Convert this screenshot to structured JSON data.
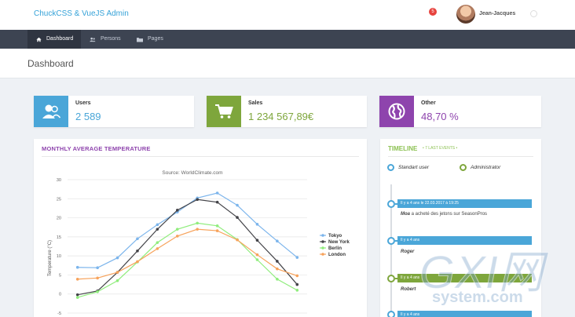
{
  "header": {
    "brand": "ChuckCSS & VueJS Admin",
    "notification_count": "5",
    "username": "Jean-Jacques"
  },
  "nav": {
    "items": [
      {
        "label": "Dashboard",
        "icon": "home-icon",
        "active": true
      },
      {
        "label": "Persons",
        "icon": "users-icon",
        "active": false
      },
      {
        "label": "Pages",
        "icon": "folder-icon",
        "active": false
      }
    ]
  },
  "page": {
    "title": "Dashboard"
  },
  "stats": [
    {
      "label": "Users",
      "value": "2 589",
      "icon": "users-icon",
      "color": "#4aa6d8"
    },
    {
      "label": "Sales",
      "value": "1 234 567,89€",
      "icon": "cart-icon",
      "color": "#7ea63c"
    },
    {
      "label": "Other",
      "value": "48,70 %",
      "icon": "globe-icon",
      "color": "#8e44ad"
    }
  ],
  "chart_panel": {
    "title": "MONTHLY AVERAGE TEMPERATURE"
  },
  "chart_data": {
    "type": "line",
    "subtitle": "Source: WorldClimate.com",
    "ylabel": "Temperature (°C)",
    "ylim": [
      -5,
      30
    ],
    "yticks": [
      -5,
      0,
      5,
      10,
      15,
      20,
      25,
      30
    ],
    "series": [
      {
        "name": "Tokyo",
        "color": "#7cb5ec",
        "values": [
          7.0,
          6.9,
          9.5,
          14.5,
          18.2,
          21.5,
          25.2,
          26.5,
          23.3,
          18.3,
          13.9,
          9.6
        ]
      },
      {
        "name": "New York",
        "color": "#434348",
        "values": [
          -0.2,
          0.8,
          5.7,
          11.3,
          17.0,
          22.0,
          24.8,
          24.1,
          20.1,
          14.1,
          8.6,
          2.5
        ]
      },
      {
        "name": "Berlin",
        "color": "#90ed7d",
        "values": [
          -0.9,
          0.6,
          3.5,
          8.4,
          13.5,
          17.0,
          18.6,
          17.9,
          14.3,
          9.0,
          3.9,
          1.0
        ]
      },
      {
        "name": "London",
        "color": "#f7a35c",
        "values": [
          3.9,
          4.2,
          5.7,
          8.5,
          11.9,
          15.2,
          17.0,
          16.6,
          14.2,
          10.3,
          6.6,
          4.8
        ]
      }
    ],
    "legend_position": "right"
  },
  "timeline": {
    "title": "TIMELINE",
    "subtitle": "• 7 LAST EVENTS •",
    "legend": [
      {
        "label": "Standart user",
        "color": "#4aa6d8"
      },
      {
        "label": "Administrator",
        "color": "#7ea63c"
      }
    ],
    "events": [
      {
        "date": "Il y a 4 ans le 22.03.2017 à 19:25",
        "actor": "Moa",
        "text": " a acheté des jetons sur SeasonPros",
        "color": "#4aa6d8"
      },
      {
        "date": "Il y a 4 ans",
        "actor": "Roger",
        "text": "",
        "color": "#4aa6d8"
      },
      {
        "date": "Il y a 4 ans",
        "actor": "Robert",
        "text": "",
        "color": "#7ea63c"
      },
      {
        "date": "Il y a 4 ans",
        "actor": "",
        "text": "",
        "color": "#4aa6d8"
      }
    ]
  },
  "watermark": {
    "text": "GXI网",
    "sub": "system.com"
  }
}
